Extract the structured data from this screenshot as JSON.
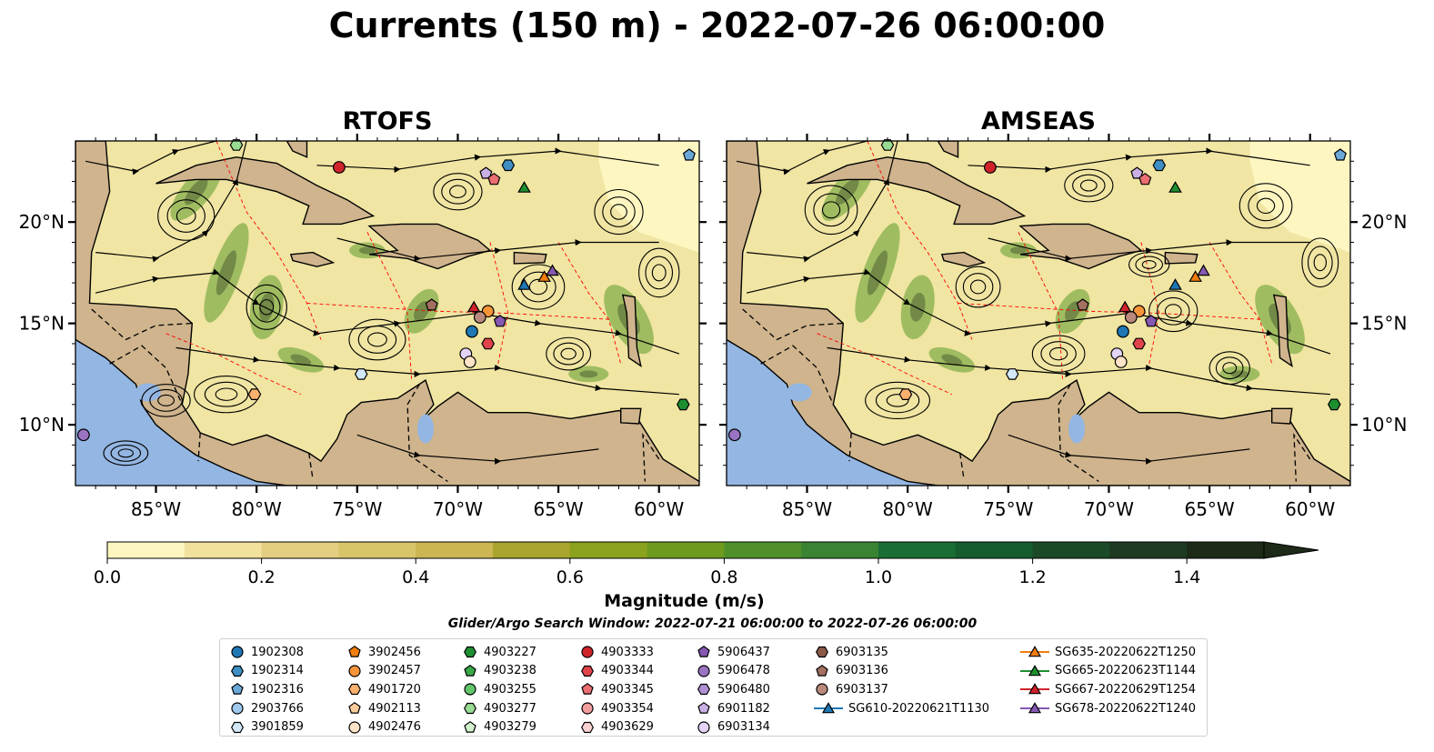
{
  "title": "Currents (150 m) - 2022-07-26 06:00:00",
  "panels": [
    {
      "title": "RTOFS"
    },
    {
      "title": "AMSEAS"
    }
  ],
  "colors": {
    "land": "#cfb48d",
    "water_deep": "#94b6e2",
    "field_low": "#fdf6c1",
    "field_mid": "#d8c56a",
    "field_green": "#5e9a2c",
    "field_dark": "#1d2a17",
    "eez_line": "#ff0000",
    "stream": "#000000"
  },
  "chart_data": {
    "type": "heatmap",
    "variable": "Magnitude (m/s)",
    "depth": "150 m",
    "time": "2022-07-26 06:00:00",
    "xlim": [
      -89,
      -58
    ],
    "ylim": [
      7,
      24
    ],
    "xticks": [
      -85,
      -80,
      -75,
      -70,
      -65,
      -60
    ],
    "xtick_labels": [
      "85°W",
      "80°W",
      "75°W",
      "70°W",
      "65°W",
      "60°W"
    ],
    "yticks": [
      10,
      15,
      20
    ],
    "ytick_labels": [
      "10°N",
      "15°N",
      "20°N"
    ],
    "colorbar": {
      "label": "Magnitude (m/s)",
      "min": 0.0,
      "max": 1.5,
      "step": 0.1,
      "extend": "max",
      "ticks": [
        "0.0",
        "0.2",
        "0.4",
        "0.6",
        "0.8",
        "1.0",
        "1.2",
        "1.4"
      ],
      "colors": [
        "#fdf6c1",
        "#f1e19d",
        "#e3cf81",
        "#d8c56a",
        "#cbb653",
        "#a9a52e",
        "#8aa21e",
        "#6d9b1e",
        "#50902a",
        "#3a8332",
        "#1a6e35",
        "#165c2f",
        "#1b4a28",
        "#1e3a22",
        "#1d2a17"
      ]
    },
    "search_window": "Glider/Argo Search Window: 2022-07-21 06:00:00 to 2022-07-26 06:00:00",
    "legend_columns": [
      [
        {
          "label": "1902308",
          "marker": "circle",
          "color": "#1f77b4"
        },
        {
          "label": "1902314",
          "marker": "hexagon",
          "color": "#3f8fc5"
        },
        {
          "label": "1902316",
          "marker": "pentagon",
          "color": "#6aa8d8"
        },
        {
          "label": "2903766",
          "marker": "circle",
          "color": "#9ec8ec"
        },
        {
          "label": "3901859",
          "marker": "hexagon",
          "color": "#d2e8f8"
        }
      ],
      [
        {
          "label": "3902456",
          "marker": "pentagon",
          "color": "#f17d0e"
        },
        {
          "label": "3902457",
          "marker": "circle",
          "color": "#f69438"
        },
        {
          "label": "4901720",
          "marker": "hexagon",
          "color": "#fab16e"
        },
        {
          "label": "4902113",
          "marker": "pentagon",
          "color": "#fccb9c"
        },
        {
          "label": "4902476",
          "marker": "circle",
          "color": "#fde3c8"
        }
      ],
      [
        {
          "label": "4903227",
          "marker": "hexagon",
          "color": "#1d8f31"
        },
        {
          "label": "4903238",
          "marker": "pentagon",
          "color": "#38a948"
        },
        {
          "label": "4903255",
          "marker": "circle",
          "color": "#62c56a"
        },
        {
          "label": "4903277",
          "marker": "hexagon",
          "color": "#98dc93"
        },
        {
          "label": "4903279",
          "marker": "pentagon",
          "color": "#d3f1cc"
        }
      ],
      [
        {
          "label": "4903333",
          "marker": "circle",
          "color": "#d0232a"
        },
        {
          "label": "4903344",
          "marker": "hexagon",
          "color": "#e0434a"
        },
        {
          "label": "4903345",
          "marker": "pentagon",
          "color": "#ea6e72"
        },
        {
          "label": "4903354",
          "marker": "circle",
          "color": "#f39e9e"
        },
        {
          "label": "4903629",
          "marker": "hexagon",
          "color": "#f9d1cf"
        }
      ],
      [
        {
          "label": "5906437",
          "marker": "pentagon",
          "color": "#8658b2"
        },
        {
          "label": "5906478",
          "marker": "circle",
          "color": "#9b73c3"
        },
        {
          "label": "5906480",
          "marker": "hexagon",
          "color": "#b190d4"
        },
        {
          "label": "6901182",
          "marker": "pentagon",
          "color": "#c9b0e4"
        },
        {
          "label": "6903134",
          "marker": "circle",
          "color": "#e3d3f5"
        }
      ],
      [
        {
          "label": "6903135",
          "marker": "hexagon",
          "color": "#8a5a4b"
        },
        {
          "label": "6903136",
          "marker": "pentagon",
          "color": "#a26f60"
        },
        {
          "label": "6903137",
          "marker": "circle",
          "color": "#b98a7c"
        },
        {
          "label": "SG610-20220621T1130",
          "marker": "triangle",
          "color": "#1f77b4"
        }
      ],
      [
        {
          "label": "SG635-20220622T1250",
          "marker": "triangle",
          "color": "#f17d0e"
        },
        {
          "label": "SG665-20220623T1144",
          "marker": "triangle",
          "color": "#1d8f31"
        },
        {
          "label": "SG667-20220629T1254",
          "marker": "triangle",
          "color": "#d0232a"
        },
        {
          "label": "SG678-20220622T1240",
          "marker": "triangle",
          "color": "#8658b2"
        }
      ]
    ],
    "observations": [
      {
        "label": "6903134",
        "lon": -69.6,
        "lat": 13.5
      },
      {
        "label": "4902476",
        "lon": -69.4,
        "lat": 13.1
      },
      {
        "label": "1902308",
        "lon": -69.3,
        "lat": 14.6
      },
      {
        "label": "3902457",
        "lon": -68.5,
        "lat": 15.6
      },
      {
        "label": "6903137",
        "lon": -68.9,
        "lat": 15.3
      },
      {
        "label": "5906437",
        "lon": -67.9,
        "lat": 15.1
      },
      {
        "label": "4903344",
        "lon": -68.5,
        "lat": 14.0
      },
      {
        "label": "SG667-20220629T1254",
        "lon": -69.2,
        "lat": 15.8
      },
      {
        "label": "6903136",
        "lon": -71.3,
        "lat": 15.9
      },
      {
        "label": "SG610-20220621T1130",
        "lon": -66.7,
        "lat": 16.9
      },
      {
        "label": "SG635-20220622T1250",
        "lon": -65.7,
        "lat": 17.3
      },
      {
        "label": "SG678-20220622T1240",
        "lon": -65.3,
        "lat": 17.6
      },
      {
        "label": "4903333",
        "lon": -75.9,
        "lat": 22.7
      },
      {
        "label": "6901182",
        "lon": -68.6,
        "lat": 22.4
      },
      {
        "label": "4903345",
        "lon": -68.2,
        "lat": 22.1
      },
      {
        "label": "1902314",
        "lon": -67.5,
        "lat": 22.8
      },
      {
        "label": "SG665-20220623T1144",
        "lon": -66.7,
        "lat": 21.7
      },
      {
        "label": "1902316",
        "lon": -58.5,
        "lat": 23.3
      },
      {
        "label": "4903277",
        "lon": -81.0,
        "lat": 23.8
      },
      {
        "label": "3901859",
        "lon": -74.8,
        "lat": 12.5
      },
      {
        "label": "4901720",
        "lon": -80.1,
        "lat": 11.5
      },
      {
        "label": "5906478",
        "lon": -88.6,
        "lat": 9.5
      },
      {
        "label": "4903227",
        "lon": -58.8,
        "lat": 11.0
      }
    ]
  }
}
